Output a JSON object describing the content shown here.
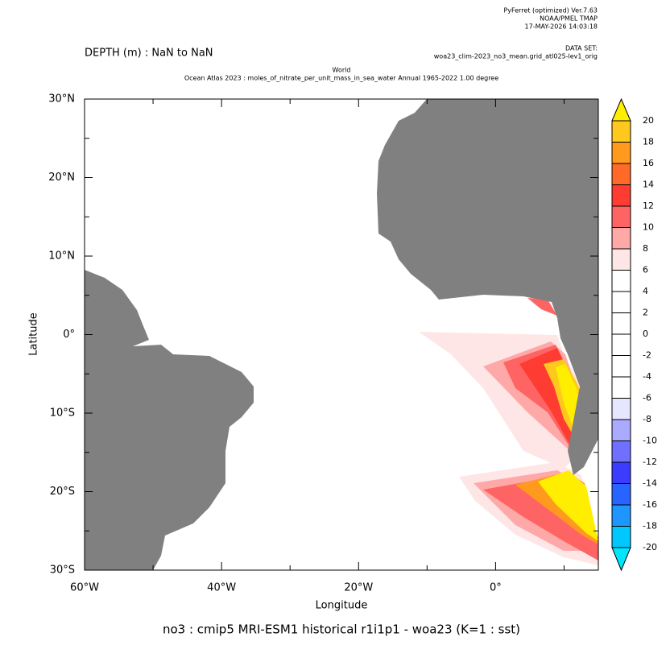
{
  "chart_data": {
    "type": "map",
    "credit": [
      "PyFerret (optimized) Ver.7.63",
      "NOAA/PMEL TMAP",
      "17-MAY-2026 14:03:18"
    ],
    "dataset_label": "DATA SET:",
    "dataset": "woa23_clim-2023_no3_mean.grid_atl025-lev1_orig",
    "title_lines": [
      "World",
      "Ocean Atlas 2023 : moles_of_nitrate_per_unit_mass_in_sea_water Annual 1965-2022 1.00 degree"
    ],
    "depth": "DEPTH (m) : NaN to NaN",
    "xlabel": "Longitude",
    "ylabel": "Latitude",
    "caption": "no3 : cmip5 MRI-ESM1 historical r1i1p1 - woa23  (K=1 : sst)",
    "xlim": [
      -60,
      15
    ],
    "ylim": [
      -30,
      30
    ],
    "xticks": [
      {
        "value": -60,
        "label": "60°W"
      },
      {
        "value": -40,
        "label": "40°W"
      },
      {
        "value": -20,
        "label": "20°W"
      },
      {
        "value": 0,
        "label": "0°"
      }
    ],
    "xminorticks": [
      -50,
      -30,
      -10,
      10
    ],
    "yticks": [
      {
        "value": 30,
        "label": "30°N"
      },
      {
        "value": 20,
        "label": "20°N"
      },
      {
        "value": 10,
        "label": "10°N"
      },
      {
        "value": 0,
        "label": "0°"
      },
      {
        "value": -10,
        "label": "10°S"
      },
      {
        "value": -20,
        "label": "20°S"
      },
      {
        "value": -30,
        "label": "30°S"
      }
    ],
    "yminorticks": [
      25,
      15,
      5,
      -5,
      -15,
      -25
    ],
    "land_color": "#808080",
    "colorbar": {
      "levels": [
        20,
        18,
        16,
        14,
        12,
        10,
        8,
        6,
        4,
        2,
        0,
        -2,
        -4,
        -6,
        -8,
        -10,
        -12,
        -14,
        -16,
        -18,
        -20
      ],
      "colors": [
        "#ffee00",
        "#ffc81e",
        "#ff9a1e",
        "#ff6a28",
        "#ff3c32",
        "#ff6464",
        "#ffa8a8",
        "#ffe6e6",
        "#ffffff",
        "#ffffff",
        "#ffffff",
        "#ffffff",
        "#ffffff",
        "#ffffff",
        "#e6e6ff",
        "#aaaaff",
        "#7070ff",
        "#3c3cff",
        "#2864ff",
        "#1e96ff",
        "#00c8ff",
        "#00e6ff"
      ]
    }
  }
}
